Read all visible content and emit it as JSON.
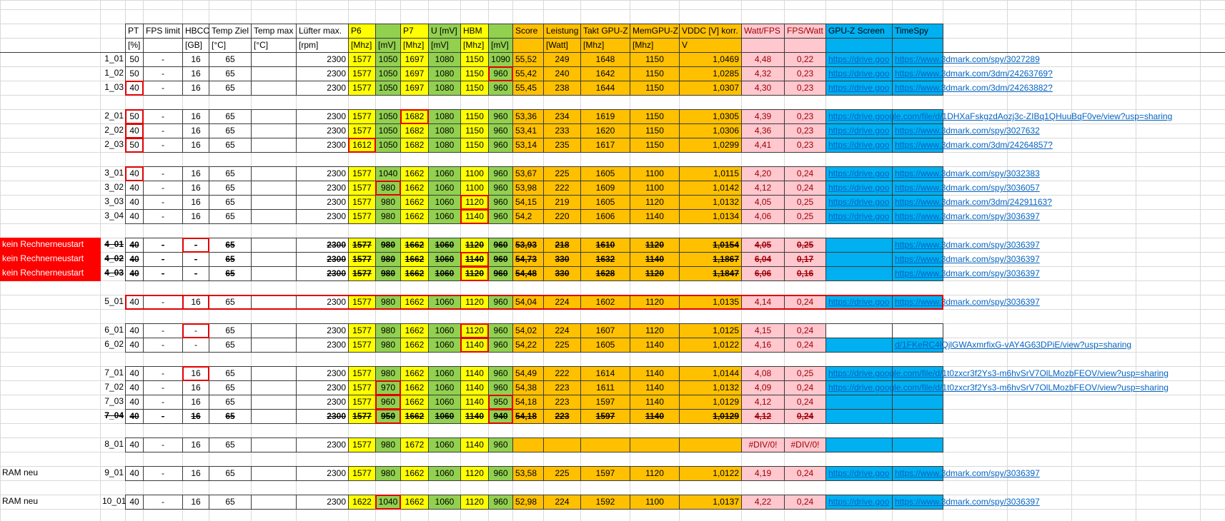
{
  "header": {
    "labels": [
      null,
      null,
      "PT",
      "FPS limit",
      "HBCC",
      "Temp Ziel",
      "Temp max",
      "Lüfter max.",
      "P6",
      null,
      "P7",
      "U [mV]",
      "HBM",
      null,
      "Score",
      "Leistung",
      "Takt GPU-Z",
      "MemGPU-Z",
      "VDDC [V] korr.",
      "Watt/FPS",
      "FPS/Watt",
      "GPU-Z Screen",
      "TimeSpy"
    ],
    "units": [
      null,
      null,
      "[%]",
      null,
      "[GB]",
      "[°C]",
      "[°C]",
      "[rpm]",
      "[Mhz]",
      "[mV]",
      "[Mhz]",
      "[mV]",
      "[Mhz]",
      "[mV]",
      null,
      "[Watt]",
      "[Mhz]",
      "[Mhz]",
      "V",
      null,
      null,
      null,
      null
    ]
  },
  "groups": [
    [
      [
        null,
        "1_01",
        "50",
        "-",
        "16",
        "65",
        null,
        "2300",
        "1577",
        "1050",
        "1697",
        "1080",
        "1150",
        "1090",
        "55,52",
        "249",
        "1648",
        "1150",
        "1,0469",
        "4,48",
        "0,22",
        "https://drive.goo",
        "https://www.3dmark.com/spy/3027289"
      ],
      [
        null,
        "1_02",
        "50",
        "-",
        "16",
        "65",
        null,
        "2300",
        "1577",
        "1050",
        "1697",
        "1080",
        "1150",
        "960",
        "55,42",
        "240",
        "1642",
        "1150",
        "1,0285",
        "4,32",
        "0,23",
        "https://drive.goo",
        "https://www.3dmark.com/3dm/24263769?"
      ],
      [
        null,
        "1_03",
        "40",
        "-",
        "16",
        "65",
        null,
        "2300",
        "1577",
        "1050",
        "1697",
        "1080",
        "1150",
        "960",
        "55,45",
        "238",
        "1644",
        "1150",
        "1,0307",
        "4,30",
        "0,23",
        "https://drive.goo",
        "https://www.3dmark.com/3dm/24263882?"
      ]
    ],
    [
      [
        null,
        "2_01",
        "50",
        "-",
        "16",
        "65",
        null,
        "2300",
        "1577",
        "1050",
        "1682",
        "1080",
        "1150",
        "960",
        "53,36",
        "234",
        "1619",
        "1150",
        "1,0305",
        "4,39",
        "0,23",
        "https://drive.google.com/file/d/1DHXaFskgzdAozj3c-ZIBq1QHuuBqF0ve/view?usp=sharing",
        null
      ],
      [
        null,
        "2_02",
        "40",
        "-",
        "16",
        "65",
        null,
        "2300",
        "1577",
        "1050",
        "1682",
        "1080",
        "1150",
        "960",
        "53,41",
        "233",
        "1620",
        "1150",
        "1,0306",
        "4,36",
        "0,23",
        "https://drive.goo",
        "https://www.3dmark.com/spy/3027632"
      ],
      [
        null,
        "2_03",
        "50",
        "-",
        "16",
        "65",
        null,
        "2300",
        "1612",
        "1050",
        "1682",
        "1080",
        "1150",
        "960",
        "53,14",
        "235",
        "1617",
        "1150",
        "1,0299",
        "4,41",
        "0,23",
        "https://drive.goo",
        "https://www.3dmark.com/3dm/24264857?"
      ]
    ],
    [
      [
        null,
        "3_01",
        "40",
        "-",
        "16",
        "65",
        null,
        "2300",
        "1577",
        "1040",
        "1662",
        "1060",
        "1100",
        "960",
        "53,67",
        "225",
        "1605",
        "1100",
        "1,0115",
        "4,20",
        "0,24",
        "https://drive.goo",
        "https://www.3dmark.com/spy/3032383"
      ],
      [
        null,
        "3_02",
        "40",
        "-",
        "16",
        "65",
        null,
        "2300",
        "1577",
        "980",
        "1662",
        "1060",
        "1100",
        "960",
        "53,98",
        "222",
        "1609",
        "1100",
        "1,0142",
        "4,12",
        "0,24",
        "https://drive.goo",
        "https://www.3dmark.com/spy/3036057"
      ],
      [
        null,
        "3_03",
        "40",
        "-",
        "16",
        "65",
        null,
        "2300",
        "1577",
        "980",
        "1662",
        "1060",
        "1120",
        "960",
        "54,15",
        "219",
        "1605",
        "1120",
        "1,0132",
        "4,05",
        "0,25",
        "https://drive.goo",
        "https://www.3dmark.com/3dm/24291163?"
      ],
      [
        null,
        "3_04",
        "40",
        "-",
        "16",
        "65",
        null,
        "2300",
        "1577",
        "980",
        "1662",
        "1060",
        "1140",
        "960",
        "54,2",
        "220",
        "1606",
        "1140",
        "1,0134",
        "4,06",
        "0,25",
        "https://drive.goo",
        "https://www.3dmark.com/spy/3036397"
      ]
    ],
    [
      [
        "kein Rechnerneustart",
        "4_01",
        "40",
        "-",
        "-",
        "65",
        null,
        "2300",
        "1577",
        "980",
        "1662",
        "1060",
        "1120",
        "960",
        "53,93",
        "218",
        "1610",
        "1120",
        "1,0154",
        "4,05",
        "0,25",
        null,
        "https://www.3dmark.com/spy/3036397"
      ],
      [
        "kein Rechnerneustart",
        "4_02",
        "40",
        "-",
        "-",
        "65",
        null,
        "2300",
        "1577",
        "980",
        "1662",
        "1060",
        "1140",
        "960",
        "54,73",
        "330",
        "1632",
        "1140",
        "1,1867",
        "6,04",
        "0,17",
        null,
        "https://www.3dmark.com/spy/3036397"
      ],
      [
        "kein Rechnerneustart",
        "4_03",
        "40",
        "-",
        "-",
        "65",
        null,
        "2300",
        "1577",
        "980",
        "1662",
        "1060",
        "1120",
        "960",
        "54,48",
        "330",
        "1628",
        "1120",
        "1,1847",
        "6,06",
        "0,16",
        null,
        "https://www.3dmark.com/spy/3036397"
      ]
    ],
    [
      [
        null,
        "5_01",
        "40",
        "-",
        "16",
        "65",
        null,
        "2300",
        "1577",
        "980",
        "1662",
        "1060",
        "1120",
        "960",
        "54,04",
        "224",
        "1602",
        "1120",
        "1,0135",
        "4,14",
        "0,24",
        "https://drive.goo",
        "https://www.3dmark.com/spy/3036397"
      ]
    ],
    [
      [
        null,
        "6_01",
        "40",
        "-",
        "-",
        "65",
        null,
        "2300",
        "1577",
        "980",
        "1662",
        "1060",
        "1120",
        "960",
        "54,02",
        "224",
        "1607",
        "1120",
        "1,0125",
        "4,15",
        "0,24",
        null,
        null
      ],
      [
        null,
        "6_02",
        "40",
        "-",
        "-",
        "65",
        null,
        "2300",
        "1577",
        "980",
        "1662",
        "1060",
        "1140",
        "960",
        "54,22",
        "225",
        "1605",
        "1140",
        "1,0122",
        "4,16",
        "0,24",
        null,
        "d/1FKeRC4lQjlGWAxmrfixG-vAY4G63DPiE/view?usp=sharing"
      ]
    ],
    [
      [
        null,
        "7_01",
        "40",
        "-",
        "16",
        "65",
        null,
        "2300",
        "1577",
        "980",
        "1662",
        "1060",
        "1140",
        "960",
        "54,49",
        "222",
        "1614",
        "1140",
        "1,0144",
        "4,08",
        "0,25",
        "https://drive.google.com/file/d/1t0zxcr3f2Ys3-m6hvSrV7OlLMozbFEOV/view?usp=sharing",
        null
      ],
      [
        null,
        "7_02",
        "40",
        "-",
        "16",
        "65",
        null,
        "2300",
        "1577",
        "970",
        "1662",
        "1060",
        "1140",
        "960",
        "54,38",
        "223",
        "1611",
        "1140",
        "1,0132",
        "4,09",
        "0,24",
        "https://drive.google.com/file/d/1t0zxcr3f2Ys3-m6hvSrV7OlLMozbFEOV/view?usp=sharing",
        null
      ],
      [
        null,
        "7_03",
        "40",
        "-",
        "16",
        "65",
        null,
        "2300",
        "1577",
        "960",
        "1662",
        "1060",
        "1140",
        "950",
        "54,18",
        "223",
        "1597",
        "1140",
        "1,0129",
        "4,12",
        "0,24",
        null,
        null
      ],
      [
        null,
        "7_04",
        "40",
        "-",
        "16",
        "65",
        null,
        "2300",
        "1577",
        "950",
        "1662",
        "1060",
        "1140",
        "940",
        "54,18",
        "223",
        "1597",
        "1140",
        "1,0129",
        "4,12",
        "0,24",
        null,
        null
      ]
    ],
    [
      [
        null,
        "8_01",
        "40",
        "-",
        "16",
        "65",
        null,
        "2300",
        "1577",
        "980",
        "1672",
        "1060",
        "1140",
        "960",
        null,
        null,
        null,
        null,
        null,
        "#DIV/0!",
        "#DIV/0!",
        null,
        null
      ]
    ],
    [
      [
        "RAM neu",
        "9_01",
        "40",
        "-",
        "16",
        "65",
        null,
        "2300",
        "1577",
        "980",
        "1662",
        "1060",
        "1120",
        "960",
        "53,58",
        "225",
        "1597",
        "1120",
        "1,0122",
        "4,19",
        "0,24",
        "https://drive.goo",
        "https://www.3dmark.com/spy/3036397"
      ]
    ],
    [
      [
        "RAM neu",
        "10_01",
        "40",
        "-",
        "16",
        "65",
        null,
        "2300",
        "1622",
        "1040",
        "1662",
        "1060",
        "1120",
        "960",
        "52,98",
        "224",
        "1592",
        "1100",
        "1,0137",
        "4,22",
        "0,24",
        "https://drive.goo",
        "https://www.3dmark.com/spy/3036397"
      ]
    ]
  ]
}
